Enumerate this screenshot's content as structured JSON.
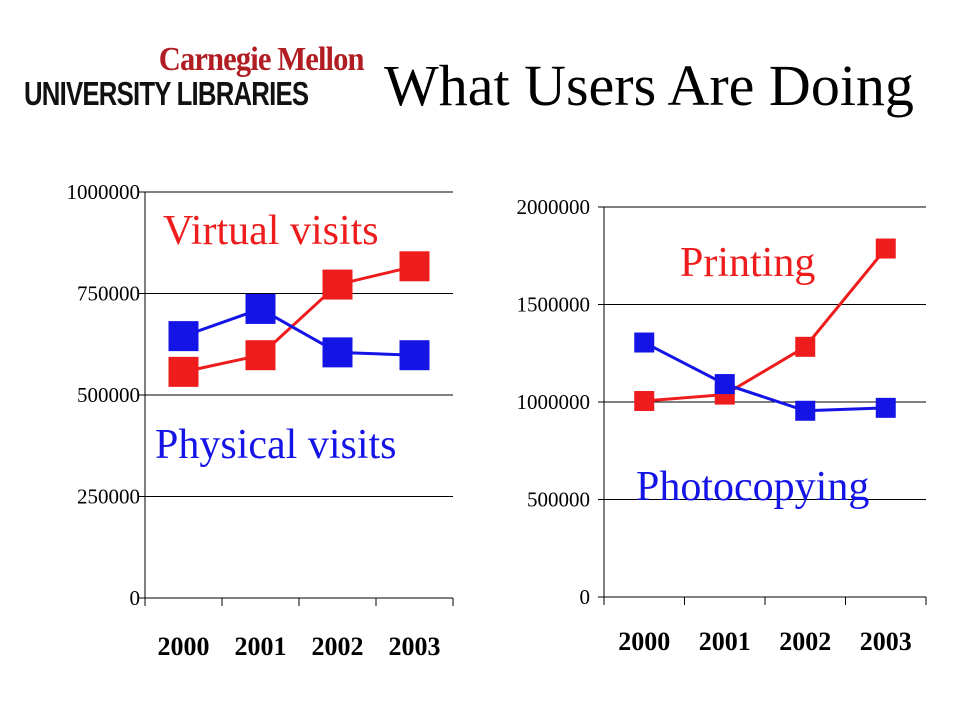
{
  "header": {
    "logo_line1": "Carnegie Mellon",
    "logo_line2": "UNIVERSITY LIBRARIES",
    "title": "What Users Are Doing"
  },
  "colors": {
    "red": "#ee1c1c",
    "blue": "#1414e6",
    "axis": "#000000"
  },
  "chart_data": [
    {
      "type": "line",
      "categories": [
        "2000",
        "2001",
        "2002",
        "2003"
      ],
      "ylim": [
        0,
        1000000
      ],
      "yticks": [
        0,
        250000,
        500000,
        750000,
        1000000
      ],
      "series": [
        {
          "name": "Virtual visits",
          "color": "#ee1c1c",
          "values": [
            557000,
            598000,
            772000,
            817000
          ]
        },
        {
          "name": "Physical visits",
          "color": "#1414e6",
          "values": [
            645000,
            712000,
            605000,
            598000
          ]
        }
      ],
      "grid": true
    },
    {
      "type": "line",
      "categories": [
        "2000",
        "2001",
        "2002",
        "2003"
      ],
      "ylim": [
        0,
        2000000
      ],
      "yticks": [
        0,
        500000,
        1000000,
        1500000,
        2000000
      ],
      "series": [
        {
          "name": "Printing",
          "color": "#ee1c1c",
          "values": [
            1005000,
            1038000,
            1283000,
            1787000
          ]
        },
        {
          "name": "Photocopying",
          "color": "#1414e6",
          "values": [
            1305000,
            1092000,
            955000,
            970000
          ]
        }
      ],
      "grid": true
    }
  ]
}
